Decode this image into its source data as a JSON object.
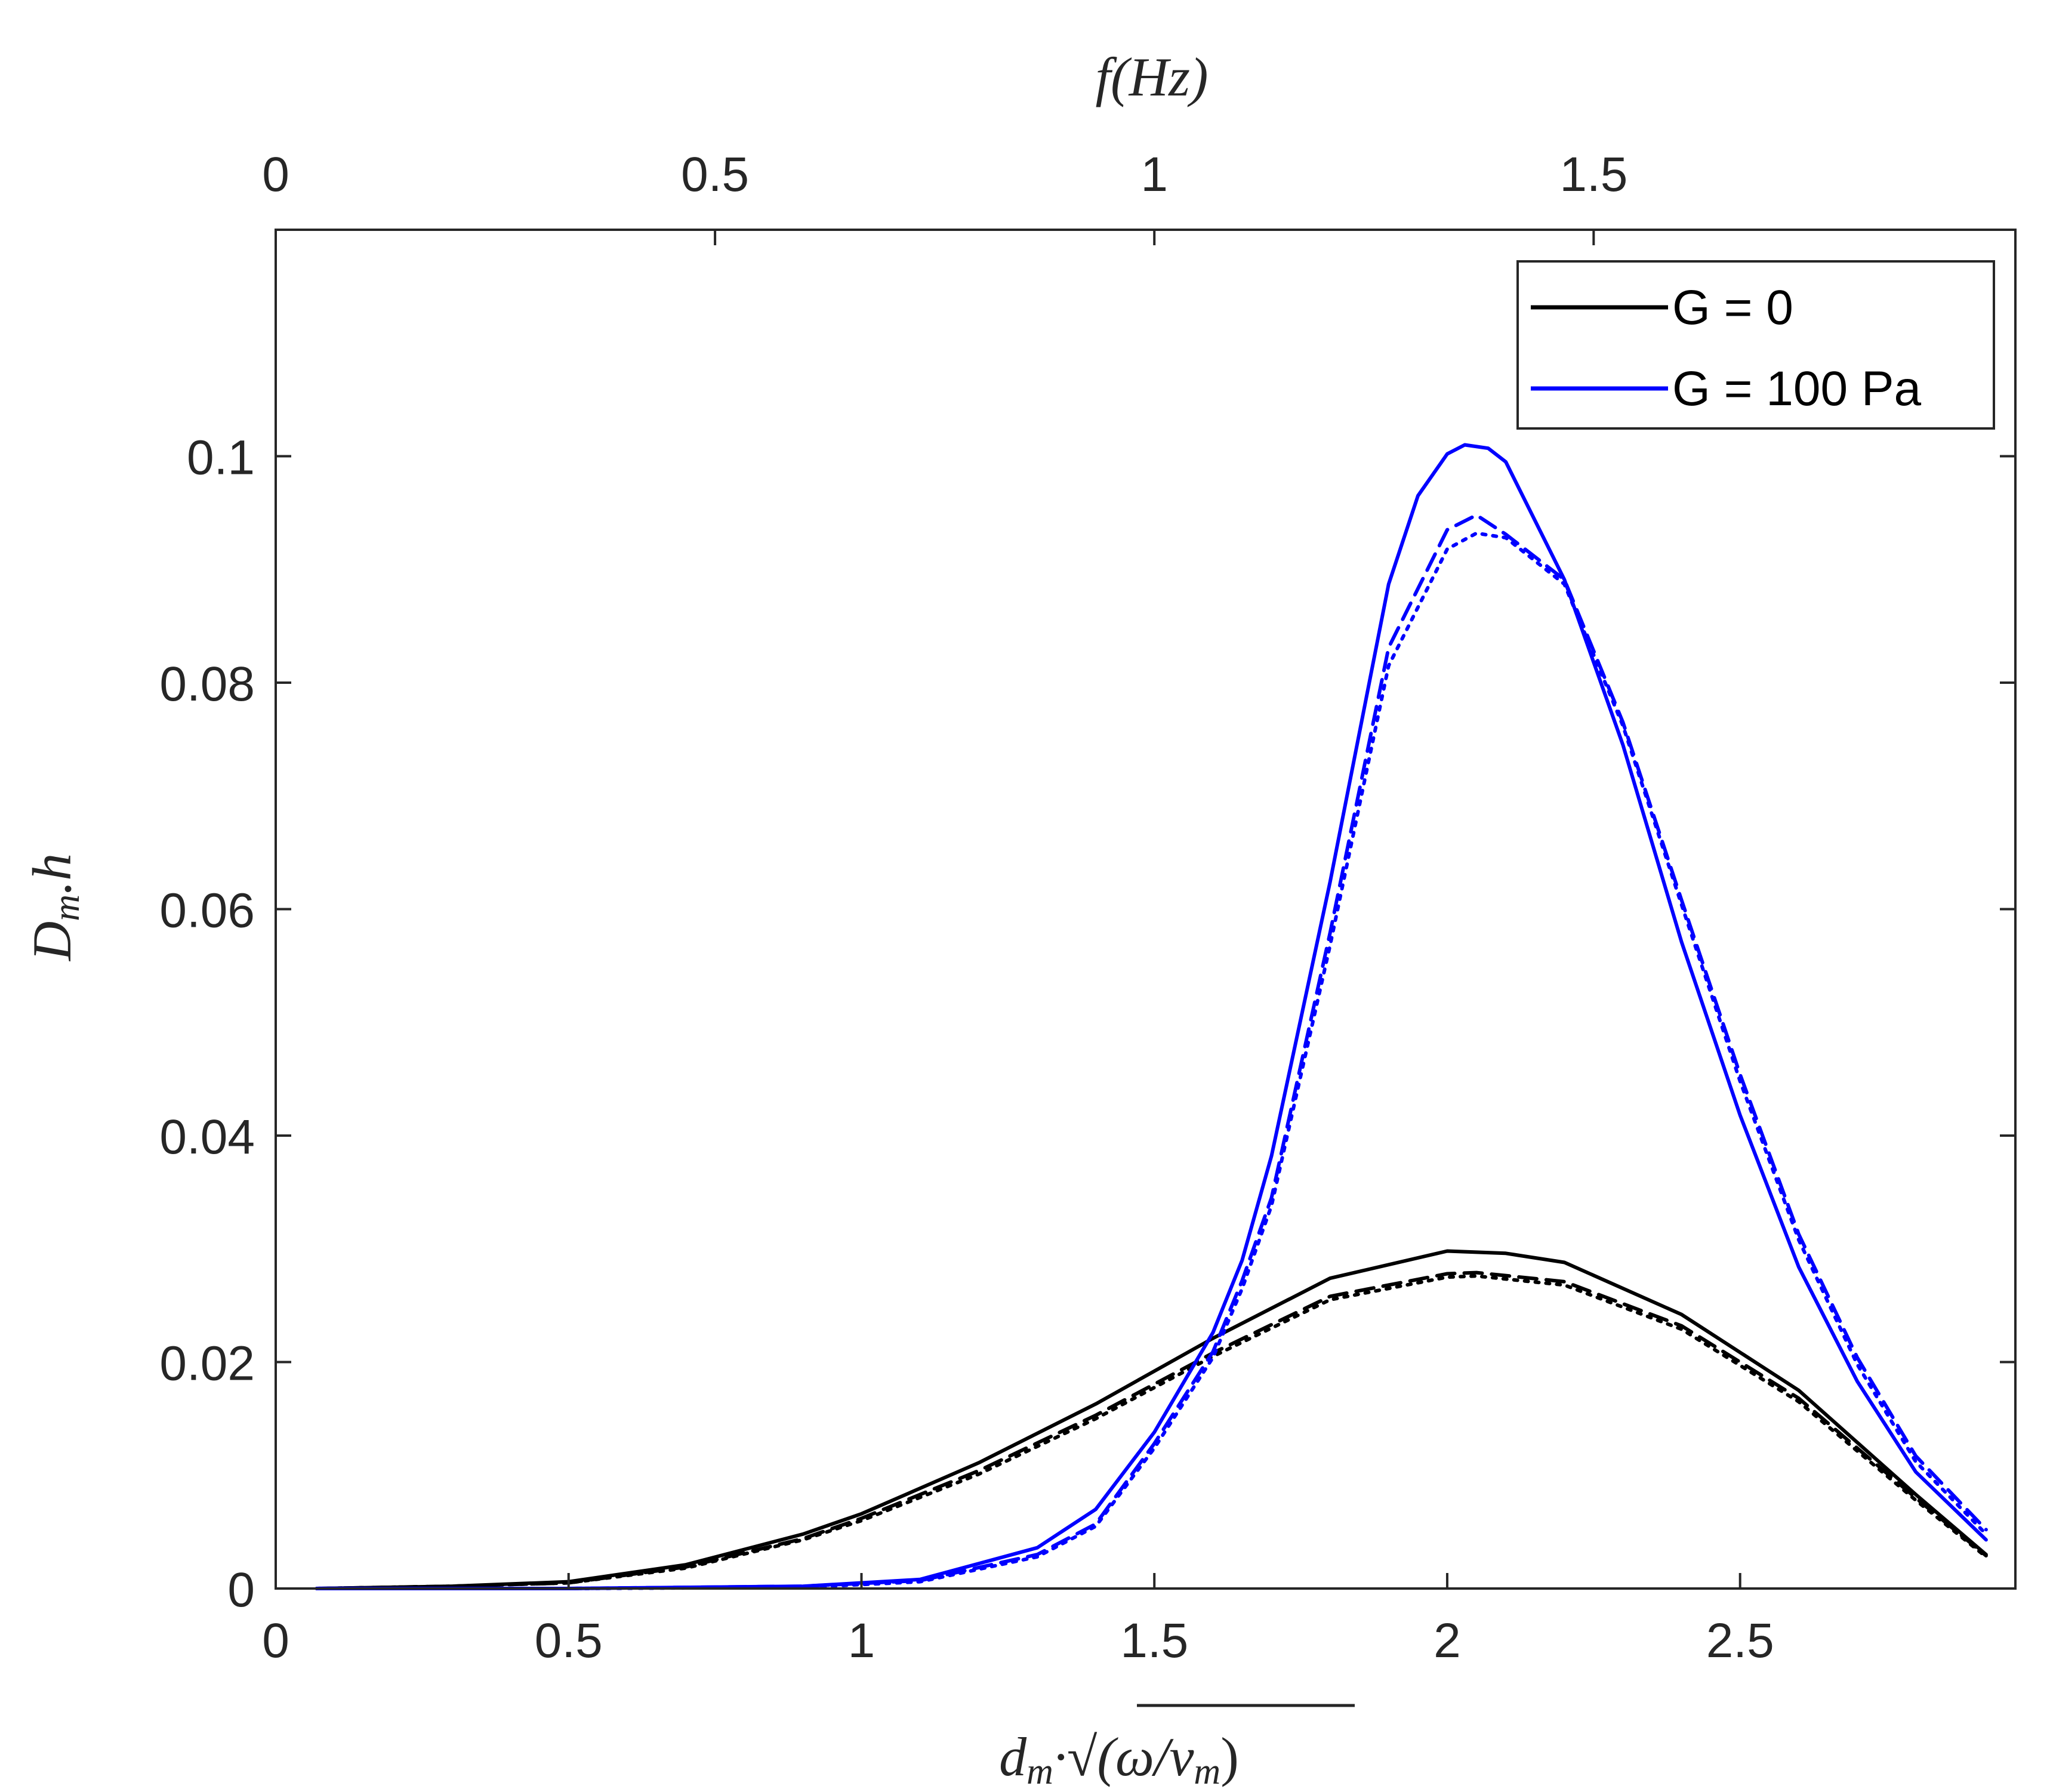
{
  "chart_data": {
    "type": "line",
    "bottom_axis": {
      "label_base": "d",
      "label_sub": "m",
      "label_dot": "·",
      "label_rest": "(ω/ν",
      "label_sub2": "m",
      "label_close": ")",
      "xlim": [
        0,
        2.97
      ],
      "ticks": [
        0,
        0.5,
        1,
        1.5,
        2,
        2.5
      ],
      "tick_labels": [
        "0",
        "0.5",
        "1",
        "1.5",
        "2",
        "2.5"
      ]
    },
    "top_axis": {
      "label_f": "f",
      "label_paren": "(Hz)",
      "tick_labels": [
        "0",
        "0.5",
        "1",
        "1.5"
      ],
      "tick_positions_bottom_units": [
        0,
        0.75,
        1.5,
        2.25
      ]
    },
    "y_axis": {
      "label_D": "D",
      "label_sub": "m",
      "label_rest": ".h",
      "ylim": [
        0,
        0.12
      ],
      "ticks": [
        0,
        0.02,
        0.04,
        0.06,
        0.08,
        0.1
      ],
      "tick_labels": [
        "0",
        "0.02",
        "0.04",
        "0.06",
        "0.08",
        "0.1"
      ]
    },
    "legend": {
      "placement": "top-right",
      "entries": [
        {
          "label": "G = 0",
          "color": "#000000"
        },
        {
          "label": "G = 100 Pa",
          "color": "#0000ff"
        }
      ]
    },
    "series": [
      {
        "name": "G = 0 (solid)",
        "color": "#000000",
        "dash": "solid",
        "x": [
          0.07,
          0.3,
          0.5,
          0.7,
          0.9,
          1.0,
          1.2,
          1.4,
          1.6,
          1.8,
          2.0,
          2.1,
          2.2,
          2.4,
          2.6,
          2.8,
          2.92
        ],
        "y": [
          0.0,
          0.0002,
          0.0006,
          0.0021,
          0.0048,
          0.0066,
          0.0111,
          0.0163,
          0.0221,
          0.0274,
          0.0298,
          0.0296,
          0.0288,
          0.0242,
          0.0175,
          0.0083,
          0.003
        ]
      },
      {
        "name": "G = 0 (dashed)",
        "color": "#000000",
        "dash": "dashed",
        "x": [
          0.07,
          0.3,
          0.5,
          0.7,
          0.9,
          1.0,
          1.2,
          1.4,
          1.6,
          1.8,
          2.0,
          2.05,
          2.2,
          2.4,
          2.6,
          2.8,
          2.92
        ],
        "y": [
          0.0,
          0.0002,
          0.0005,
          0.0019,
          0.0044,
          0.0062,
          0.0104,
          0.0153,
          0.0208,
          0.0258,
          0.0278,
          0.0279,
          0.0271,
          0.0232,
          0.0168,
          0.008,
          0.0029
        ]
      },
      {
        "name": "G = 0 (dotted)",
        "color": "#000000",
        "dash": "dotted",
        "x": [
          0.07,
          0.3,
          0.5,
          0.7,
          0.9,
          1.0,
          1.2,
          1.4,
          1.6,
          1.8,
          2.0,
          2.05,
          2.2,
          2.4,
          2.6,
          2.8,
          2.92
        ],
        "y": [
          0.0,
          0.0002,
          0.0005,
          0.0018,
          0.0043,
          0.006,
          0.0101,
          0.015,
          0.0205,
          0.0255,
          0.0275,
          0.0276,
          0.0268,
          0.0229,
          0.0165,
          0.0078,
          0.0028
        ]
      },
      {
        "name": "G = 100 Pa (solid)",
        "color": "#0000ff",
        "dash": "solid",
        "x": [
          0.07,
          0.5,
          0.9,
          1.1,
          1.3,
          1.4,
          1.5,
          1.6,
          1.65,
          1.7,
          1.8,
          1.9,
          1.95,
          2.0,
          2.03,
          2.07,
          2.1,
          2.2,
          2.3,
          2.4,
          2.5,
          2.6,
          2.7,
          2.8,
          2.92
        ],
        "y": [
          0.0,
          0.0,
          0.0002,
          0.0008,
          0.0036,
          0.007,
          0.0138,
          0.0226,
          0.029,
          0.0382,
          0.0624,
          0.0887,
          0.0965,
          0.1002,
          0.101,
          0.1007,
          0.0995,
          0.0891,
          0.0745,
          0.0571,
          0.0418,
          0.0284,
          0.0183,
          0.0103,
          0.0043
        ]
      },
      {
        "name": "G = 100 Pa (dashed)",
        "color": "#0000ff",
        "dash": "dashed",
        "x": [
          0.07,
          0.5,
          0.9,
          1.1,
          1.3,
          1.4,
          1.5,
          1.6,
          1.65,
          1.7,
          1.8,
          1.9,
          2.0,
          2.05,
          2.1,
          2.2,
          2.3,
          2.4,
          2.5,
          2.6,
          2.7,
          2.8,
          2.92
        ],
        "y": [
          0.0,
          0.0,
          0.0002,
          0.0007,
          0.003,
          0.0057,
          0.0128,
          0.0209,
          0.0272,
          0.0345,
          0.0579,
          0.0831,
          0.0935,
          0.0948,
          0.0931,
          0.0891,
          0.0765,
          0.0608,
          0.0454,
          0.0313,
          0.0204,
          0.0117,
          0.0052
        ]
      },
      {
        "name": "G = 100 Pa (dotted)",
        "color": "#0000ff",
        "dash": "dotted",
        "x": [
          0.07,
          0.5,
          0.9,
          1.1,
          1.3,
          1.4,
          1.5,
          1.6,
          1.65,
          1.7,
          1.8,
          1.9,
          2.0,
          2.05,
          2.1,
          2.2,
          2.3,
          2.4,
          2.5,
          2.6,
          2.7,
          2.8,
          2.92
        ],
        "y": [
          0.0,
          0.0,
          0.0001,
          0.0006,
          0.0028,
          0.0055,
          0.0124,
          0.0204,
          0.0265,
          0.0338,
          0.0568,
          0.0815,
          0.0918,
          0.0932,
          0.0928,
          0.0887,
          0.0762,
          0.0604,
          0.0448,
          0.0308,
          0.0198,
          0.0112,
          0.0048
        ]
      }
    ]
  }
}
